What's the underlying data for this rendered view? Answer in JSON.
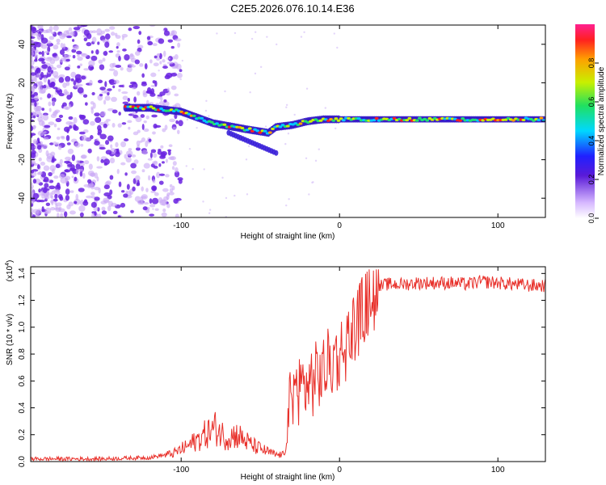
{
  "title": "C2E5.2026.076.10.14.E36",
  "chart_data": [
    {
      "type": "heatmap",
      "name": "spectrogram",
      "xlabel": "Height of straight line (km)",
      "ylabel": "Frequency (Hz)",
      "xlim": [
        -195,
        130
      ],
      "ylim": [
        -50,
        50
      ],
      "xticks": [
        -100,
        0,
        100
      ],
      "yticks": [
        -40,
        -20,
        0,
        20,
        40
      ],
      "colorbar": {
        "label": "Normalized spectral amplitude",
        "range": [
          0,
          1
        ],
        "ticks": [
          0.0,
          0.2,
          0.4,
          0.6,
          0.8
        ]
      },
      "ridge": {
        "x": [
          -135,
          -120,
          -100,
          -80,
          -60,
          -45,
          -40,
          -30,
          -20,
          -10,
          0,
          20,
          50,
          80,
          100,
          130
        ],
        "freq": [
          7,
          7,
          5,
          -1,
          -4,
          -6,
          -3,
          -2,
          0,
          1,
          1,
          1,
          1,
          1,
          1,
          1
        ]
      }
    },
    {
      "type": "line",
      "name": "snr",
      "xlabel": "Height of straight line (km)",
      "ylabel": "SNR (10 * v/v)",
      "yscale_label": "(x10",
      "yscale_exp": "4",
      "yscale_close": ")",
      "xlim": [
        -195,
        130
      ],
      "ylim": [
        0,
        1.45
      ],
      "xticks": [
        -100,
        0,
        100
      ],
      "yticks": [
        0.0,
        0.2,
        0.4,
        0.6,
        0.8,
        1.0,
        1.2,
        1.4
      ],
      "series": [
        {
          "name": "SNR",
          "color": "#e8302a",
          "x": [
            -195,
            -150,
            -120,
            -105,
            -95,
            -85,
            -78,
            -72,
            -65,
            -55,
            -45,
            -40,
            -35,
            -32,
            -30,
            -25,
            -20,
            -15,
            -10,
            -5,
            0,
            5,
            10,
            15,
            20,
            25,
            30,
            40,
            50,
            60,
            70,
            80,
            90,
            100,
            110,
            120,
            130
          ],
          "y": [
            0.02,
            0.02,
            0.03,
            0.06,
            0.12,
            0.2,
            0.25,
            0.18,
            0.2,
            0.12,
            0.07,
            0.05,
            0.05,
            0.35,
            0.55,
            0.58,
            0.6,
            0.65,
            0.7,
            0.78,
            0.82,
            0.92,
            1.05,
            1.15,
            1.25,
            1.3,
            1.32,
            1.32,
            1.33,
            1.33,
            1.33,
            1.32,
            1.34,
            1.33,
            1.32,
            1.31,
            1.31
          ]
        }
      ]
    }
  ]
}
